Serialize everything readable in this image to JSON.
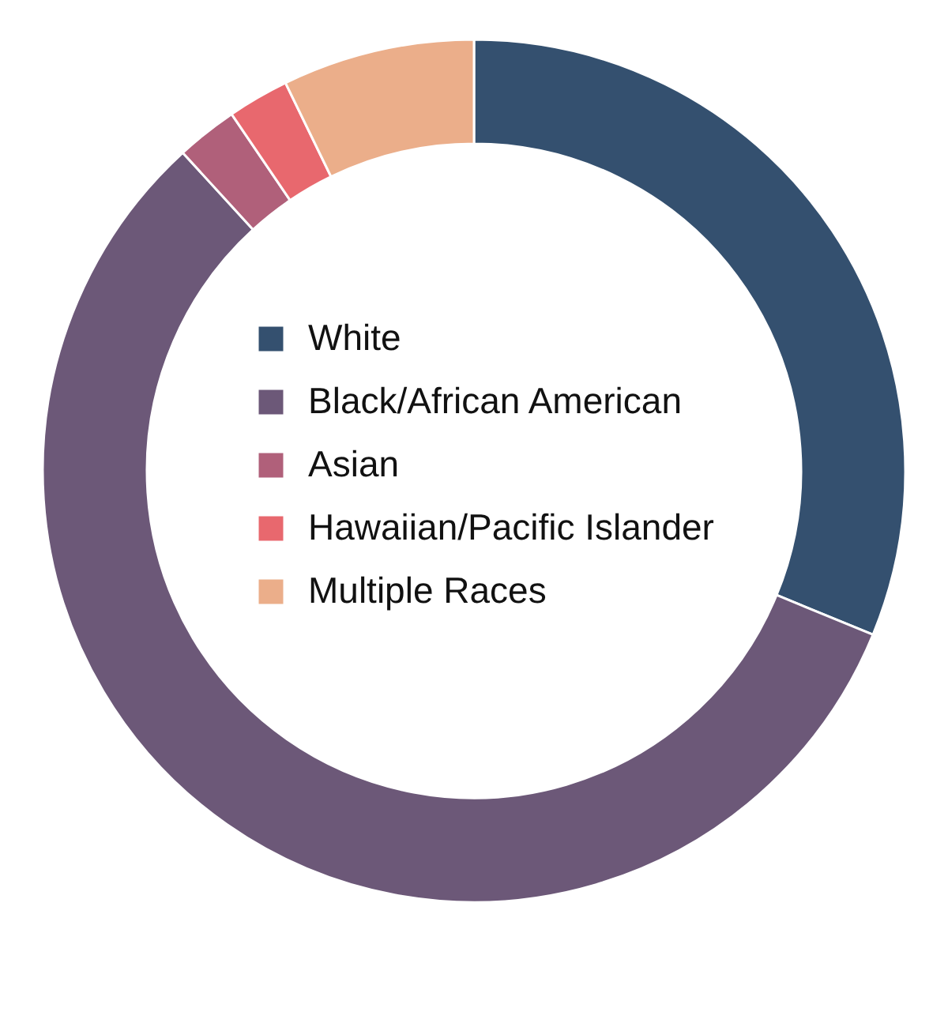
{
  "chart_data": {
    "type": "donut",
    "categories": [
      "White",
      "Black/African American",
      "Asian",
      "Hawaiian/Pacific Islander",
      "Multiple Races"
    ],
    "values": [
      31.2,
      57.0,
      2.3,
      2.3,
      7.2
    ],
    "colors": [
      "#34506f",
      "#6c5878",
      "#b0607a",
      "#e8686e",
      "#ebae8a"
    ],
    "legend": "center"
  }
}
